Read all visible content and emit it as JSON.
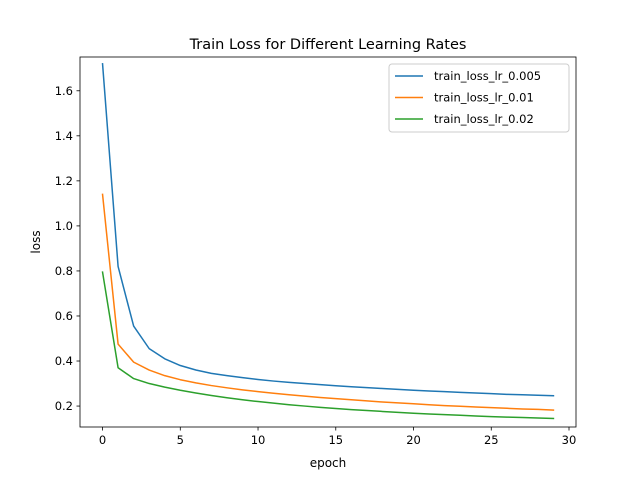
{
  "chart_data": {
    "type": "line",
    "title": "Train Loss for Different Learning Rates",
    "xlabel": "epoch",
    "ylabel": "loss",
    "xlim": [
      -1.45,
      30.45
    ],
    "ylim": [
      0.107,
      1.75
    ],
    "xticks": [
      0,
      5,
      10,
      15,
      20,
      25,
      30
    ],
    "yticks": [
      0.2,
      0.4,
      0.6,
      0.8,
      1.0,
      1.2,
      1.4,
      1.6
    ],
    "xtick_labels": [
      "0",
      "5",
      "10",
      "15",
      "20",
      "25",
      "30"
    ],
    "ytick_labels": [
      "0.2",
      "0.4",
      "0.6",
      "0.8",
      "1.0",
      "1.2",
      "1.4",
      "1.6"
    ],
    "grid": false,
    "legend_position": "top-right",
    "x": [
      0,
      1,
      2,
      3,
      4,
      5,
      6,
      7,
      8,
      9,
      10,
      11,
      12,
      13,
      14,
      15,
      16,
      17,
      18,
      19,
      20,
      21,
      22,
      23,
      24,
      25,
      26,
      27,
      28,
      29
    ],
    "series": [
      {
        "name": "train_loss_lr_0.005",
        "color": "#1f77b4",
        "values": [
          1.72,
          0.82,
          0.555,
          0.455,
          0.41,
          0.38,
          0.36,
          0.345,
          0.335,
          0.326,
          0.318,
          0.311,
          0.305,
          0.3,
          0.295,
          0.29,
          0.286,
          0.282,
          0.278,
          0.274,
          0.27,
          0.267,
          0.264,
          0.261,
          0.258,
          0.255,
          0.252,
          0.25,
          0.248,
          0.246
        ]
      },
      {
        "name": "train_loss_lr_0.01",
        "color": "#ff7f0e",
        "values": [
          1.14,
          0.475,
          0.395,
          0.36,
          0.335,
          0.317,
          0.303,
          0.291,
          0.281,
          0.272,
          0.264,
          0.257,
          0.25,
          0.244,
          0.238,
          0.233,
          0.228,
          0.223,
          0.218,
          0.214,
          0.21,
          0.206,
          0.202,
          0.199,
          0.196,
          0.193,
          0.19,
          0.187,
          0.185,
          0.182
        ]
      },
      {
        "name": "train_loss_lr_0.02",
        "color": "#2ca02c",
        "values": [
          0.795,
          0.37,
          0.322,
          0.3,
          0.284,
          0.27,
          0.258,
          0.247,
          0.237,
          0.228,
          0.22,
          0.213,
          0.206,
          0.2,
          0.194,
          0.189,
          0.184,
          0.18,
          0.176,
          0.172,
          0.168,
          0.165,
          0.162,
          0.159,
          0.156,
          0.153,
          0.151,
          0.149,
          0.147,
          0.145
        ]
      }
    ]
  }
}
